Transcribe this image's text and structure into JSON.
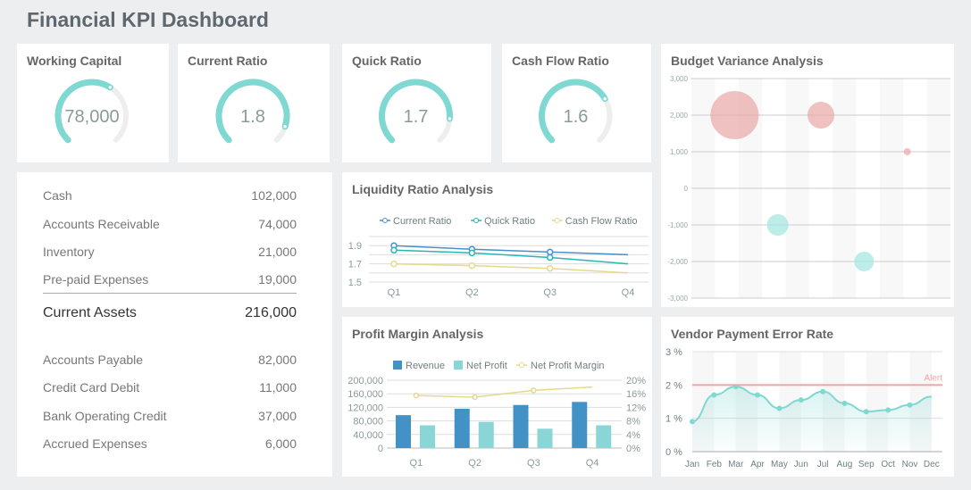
{
  "title": "Financial KPI Dashboard",
  "colors": {
    "gauge": "#7fd8d2",
    "gauge_track": "#eeeeee",
    "current": "#4a90c8",
    "quick": "#2bb5b3",
    "cashflow": "#e6d88c",
    "revenue": "#4292c6",
    "net_profit": "#8ad6d6",
    "positive_bubble": "#e8a6a6",
    "negative_bubble": "#9fe6df",
    "alert": "#f4a3a3"
  },
  "gauges": [
    {
      "title": "Working Capital",
      "value": "78,000",
      "fill": 0.62
    },
    {
      "title": "Current Ratio",
      "value": "1.8",
      "fill": 0.9
    },
    {
      "title": "Quick Ratio",
      "value": "1.7",
      "fill": 0.85
    },
    {
      "title": "Cash Flow Ratio",
      "value": "1.6",
      "fill": 0.72
    }
  ],
  "balance": {
    "assets": [
      {
        "label": "Cash",
        "value": "102,000"
      },
      {
        "label": "Accounts Receivable",
        "value": "74,000"
      },
      {
        "label": "Inventory",
        "value": "21,000"
      },
      {
        "label": "Pre-paid Expenses",
        "value": "19,000"
      }
    ],
    "total": {
      "label": "Current Assets",
      "value": "216,000"
    },
    "liabilities": [
      {
        "label": "Accounts Payable",
        "value": "82,000"
      },
      {
        "label": "Credit Card Debit",
        "value": "11,000"
      },
      {
        "label": "Bank Operating Credit",
        "value": "37,000"
      },
      {
        "label": "Accrued Expenses",
        "value": "6,000"
      }
    ]
  },
  "chart_data": [
    {
      "id": "liquidity",
      "type": "line",
      "title": "Liquidity Ratio Analysis",
      "categories": [
        "Q1",
        "Q2",
        "Q3",
        "Q4"
      ],
      "ylim": [
        1.5,
        2.0
      ],
      "yticks": [
        "1.5",
        "1.7",
        "1.9"
      ],
      "legend": "top",
      "series": [
        {
          "name": "Current Ratio",
          "values": [
            1.9,
            1.86,
            1.83,
            1.8
          ]
        },
        {
          "name": "Quick Ratio",
          "values": [
            1.85,
            1.82,
            1.77,
            1.7
          ]
        },
        {
          "name": "Cash Flow Ratio",
          "values": [
            1.7,
            1.68,
            1.65,
            1.6
          ]
        }
      ]
    },
    {
      "id": "profit",
      "type": "bar",
      "title": "Profit Margin Analysis",
      "categories": [
        "Q1",
        "Q2",
        "Q3",
        "Q4"
      ],
      "ylim": [
        0,
        200000
      ],
      "yticks": [
        "0",
        "40,000",
        "80,000",
        "120,000",
        "160,000",
        "200,000"
      ],
      "y2lim": [
        0,
        20
      ],
      "y2ticks": [
        "0%",
        "4%",
        "8%",
        "12%",
        "16%",
        "20%"
      ],
      "legend": "top",
      "series": [
        {
          "name": "Revenue",
          "values": [
            97000,
            116000,
            127000,
            136000
          ]
        },
        {
          "name": "Net Profit",
          "values": [
            67000,
            77000,
            57000,
            67000
          ]
        },
        {
          "name": "Net Profit Margin",
          "type": "line",
          "axis": "right",
          "values": [
            15.5,
            15,
            17,
            18
          ]
        }
      ]
    },
    {
      "id": "budget",
      "type": "scatter",
      "title": "Budget Variance Analysis",
      "xlim": [
        0,
        6
      ],
      "ylim": [
        -3000,
        3000
      ],
      "yticks": [
        "-3,000",
        "-2,000",
        "-1,000",
        "0",
        "1,000",
        "2,000",
        "3,000"
      ],
      "points": [
        {
          "x": 1,
          "y": 2000,
          "size": 27
        },
        {
          "x": 2,
          "y": -1000,
          "size": 12
        },
        {
          "x": 3,
          "y": 2000,
          "size": 15
        },
        {
          "x": 4,
          "y": -2000,
          "size": 11
        },
        {
          "x": 5,
          "y": 1000,
          "size": 4
        }
      ]
    },
    {
      "id": "vendor",
      "type": "area",
      "title": "Vendor Payment Error Rate",
      "categories": [
        "Jan",
        "Feb",
        "Mar",
        "Apr",
        "May",
        "Jun",
        "Jul",
        "Aug",
        "Sep",
        "Oct",
        "Nov",
        "Dec"
      ],
      "ylim": [
        0,
        3
      ],
      "yticks": [
        "0 %",
        "1 %",
        "2 %",
        "3 %"
      ],
      "values": [
        0.9,
        1.7,
        1.95,
        1.7,
        1.3,
        1.55,
        1.8,
        1.45,
        1.2,
        1.25,
        1.4,
        1.65
      ],
      "threshold": {
        "label": "Alert",
        "value": 2
      }
    }
  ]
}
